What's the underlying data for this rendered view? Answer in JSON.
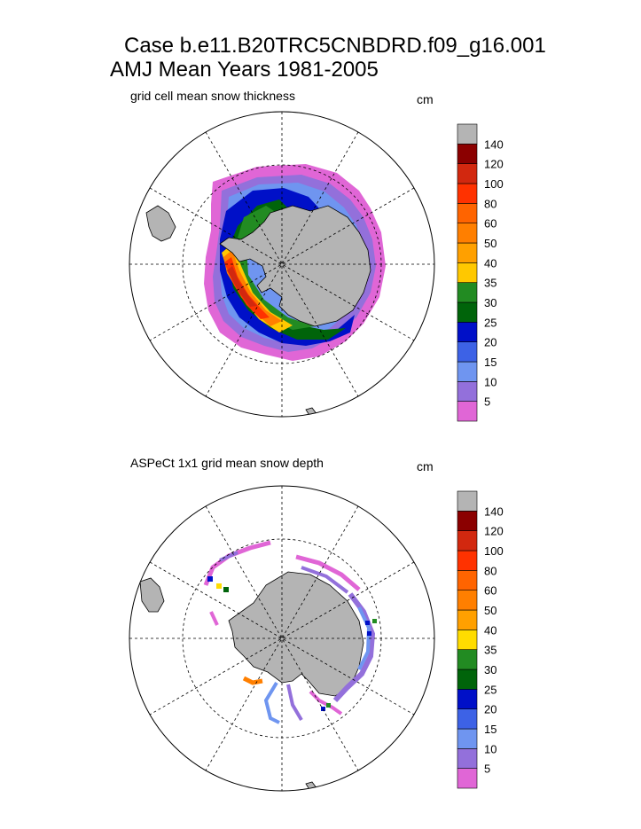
{
  "figure": {
    "title_line1": "Case b.e11.B20TRC5CNBDRD.f09_g16.001",
    "title_line2": "AMJ Mean   Years 1981-2005"
  },
  "chart_data": [
    {
      "type": "heatmap",
      "projection": "south-polar-stereographic",
      "title": "grid cell mean snow thickness",
      "units": "cm",
      "colorbar": {
        "levels": [
          5,
          10,
          15,
          20,
          25,
          30,
          35,
          40,
          50,
          60,
          80,
          100,
          120,
          140
        ],
        "colors": [
          "#e066d6",
          "#9370db",
          "#6f95f0",
          "#3d62e6",
          "#0010c8",
          "#00640a",
          "#228b22",
          "#ffc800",
          "#ffa000",
          "#ff7f00",
          "#ff6400",
          "#ff3200",
          "#d2280f",
          "#8b0000",
          "#b4b4b4"
        ]
      },
      "grid": true,
      "graticule": {
        "meridian_step_deg": 30,
        "parallel_deg": [
          -60
        ]
      }
    },
    {
      "type": "heatmap",
      "projection": "south-polar-stereographic",
      "title": "ASPeCt 1x1 grid mean snow depth",
      "units": "cm",
      "colorbar": {
        "levels": [
          5,
          10,
          15,
          20,
          25,
          30,
          35,
          40,
          50,
          60,
          80,
          100,
          120,
          140
        ],
        "colors": [
          "#e066d6",
          "#9370db",
          "#6f95f0",
          "#3d62e6",
          "#0010c8",
          "#00640a",
          "#228b22",
          "#ffdc00",
          "#ffa000",
          "#ff7f00",
          "#ff6400",
          "#ff3200",
          "#d2280f",
          "#8b0000",
          "#b4b4b4"
        ]
      },
      "grid": true,
      "graticule": {
        "meridian_step_deg": 30,
        "parallel_deg": [
          -60
        ]
      }
    }
  ]
}
